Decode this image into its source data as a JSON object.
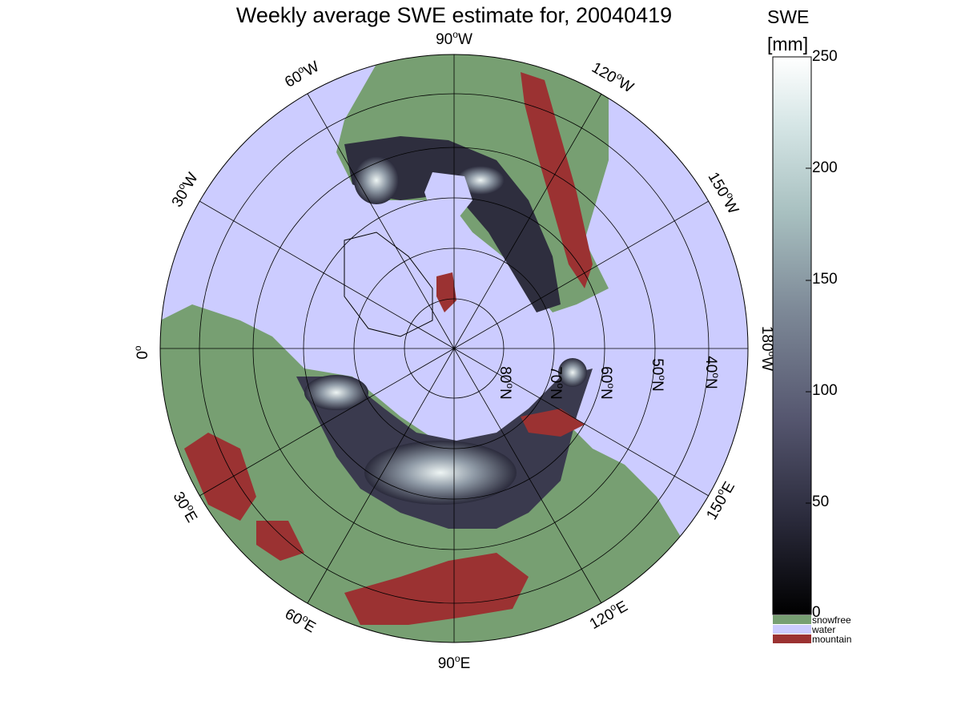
{
  "title": "Weekly average SWE estimate for, 20040419",
  "colorbar": {
    "title_line1": "SWE",
    "title_line2": "[mm]",
    "min": 0,
    "max": 250,
    "ticks": [
      "0",
      "50",
      "100",
      "150",
      "200",
      "250"
    ],
    "colors": [
      "#000000",
      "#2a2a3b",
      "#55566f",
      "#7e8a98",
      "#a8c0c0",
      "#d6e6e6",
      "#ffffff"
    ]
  },
  "legend": [
    {
      "label": "snowfree",
      "color": "#779f72"
    },
    {
      "label": "water",
      "color": "#ccccff"
    },
    {
      "label": "mountain",
      "color": "#9b3232"
    }
  ],
  "meridian_labels": [
    {
      "deg": "90",
      "hemi": "W"
    },
    {
      "deg": "120",
      "hemi": "W"
    },
    {
      "deg": "150",
      "hemi": "W"
    },
    {
      "deg": "180",
      "hemi": "W"
    },
    {
      "deg": "150",
      "hemi": "E"
    },
    {
      "deg": "120",
      "hemi": "E"
    },
    {
      "deg": "90",
      "hemi": "E"
    },
    {
      "deg": "60",
      "hemi": "E"
    },
    {
      "deg": "30",
      "hemi": "E"
    },
    {
      "deg": "0",
      "hemi": ""
    },
    {
      "deg": "30",
      "hemi": "W"
    },
    {
      "deg": "60",
      "hemi": "W"
    }
  ],
  "parallel_labels": [
    {
      "deg": "80",
      "hemi": "N"
    },
    {
      "deg": "70",
      "hemi": "N"
    },
    {
      "deg": "60",
      "hemi": "N"
    },
    {
      "deg": "50",
      "hemi": "N"
    },
    {
      "deg": "40",
      "hemi": "N"
    }
  ],
  "colors": {
    "water": "#ccccff",
    "snowfree": "#779f72",
    "mountain": "#9b3232",
    "snow_low": "#1b1b26",
    "snow_mid": "#5a5a70",
    "snow_high": "#eef5f4"
  }
}
